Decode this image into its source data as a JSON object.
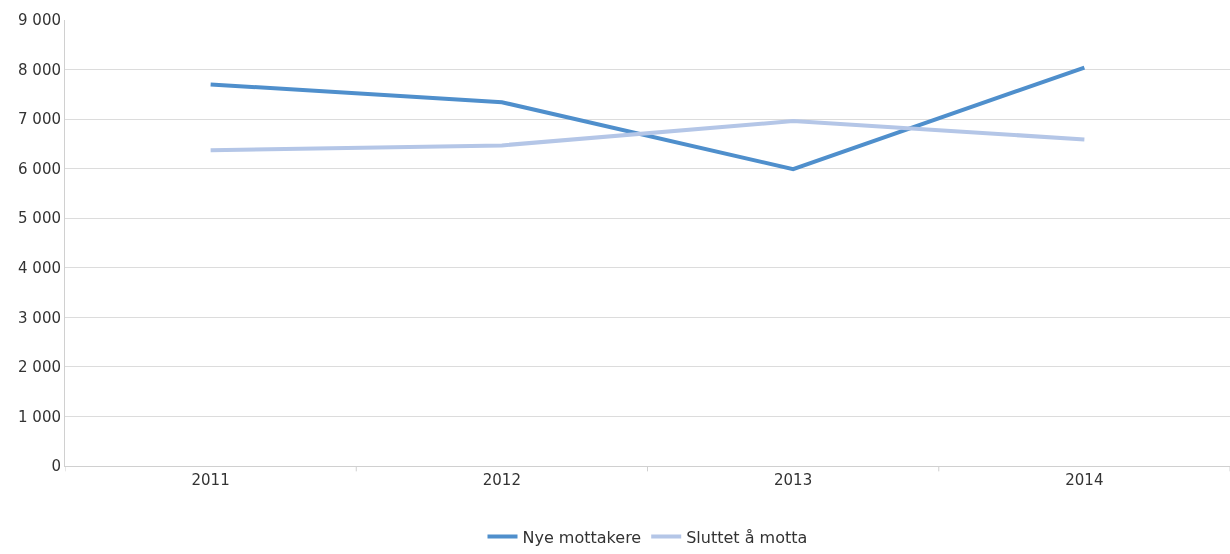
{
  "chart_data": {
    "type": "line",
    "categories": [
      "2011",
      "2012",
      "2013",
      "2014"
    ],
    "series": [
      {
        "name": "Nye mottakere",
        "color": "#4f8fcc",
        "values": [
          7700,
          7340,
          5990,
          8040
        ]
      },
      {
        "name": "Sluttet å motta",
        "color": "#b4c6e7",
        "values": [
          6370,
          6470,
          6960,
          6590
        ]
      }
    ],
    "ylim": [
      0,
      9000
    ],
    "yticks": [
      0,
      {
        "value": 1000,
        "label": "1 000"
      },
      {
        "value": 2000,
        "label": "2 000"
      },
      {
        "value": 3000,
        "label": "3 000"
      },
      {
        "value": 4000,
        "label": "4 000"
      },
      {
        "value": 5000,
        "label": "5 000"
      },
      {
        "value": 6000,
        "label": "6 000"
      },
      {
        "value": 7000,
        "label": "7 000"
      },
      {
        "value": 8000,
        "label": "8 000"
      },
      {
        "value": 9000,
        "label": "9 000"
      }
    ],
    "grid": "y",
    "legend": "bottom",
    "marker": "none",
    "line_style": "solid"
  }
}
